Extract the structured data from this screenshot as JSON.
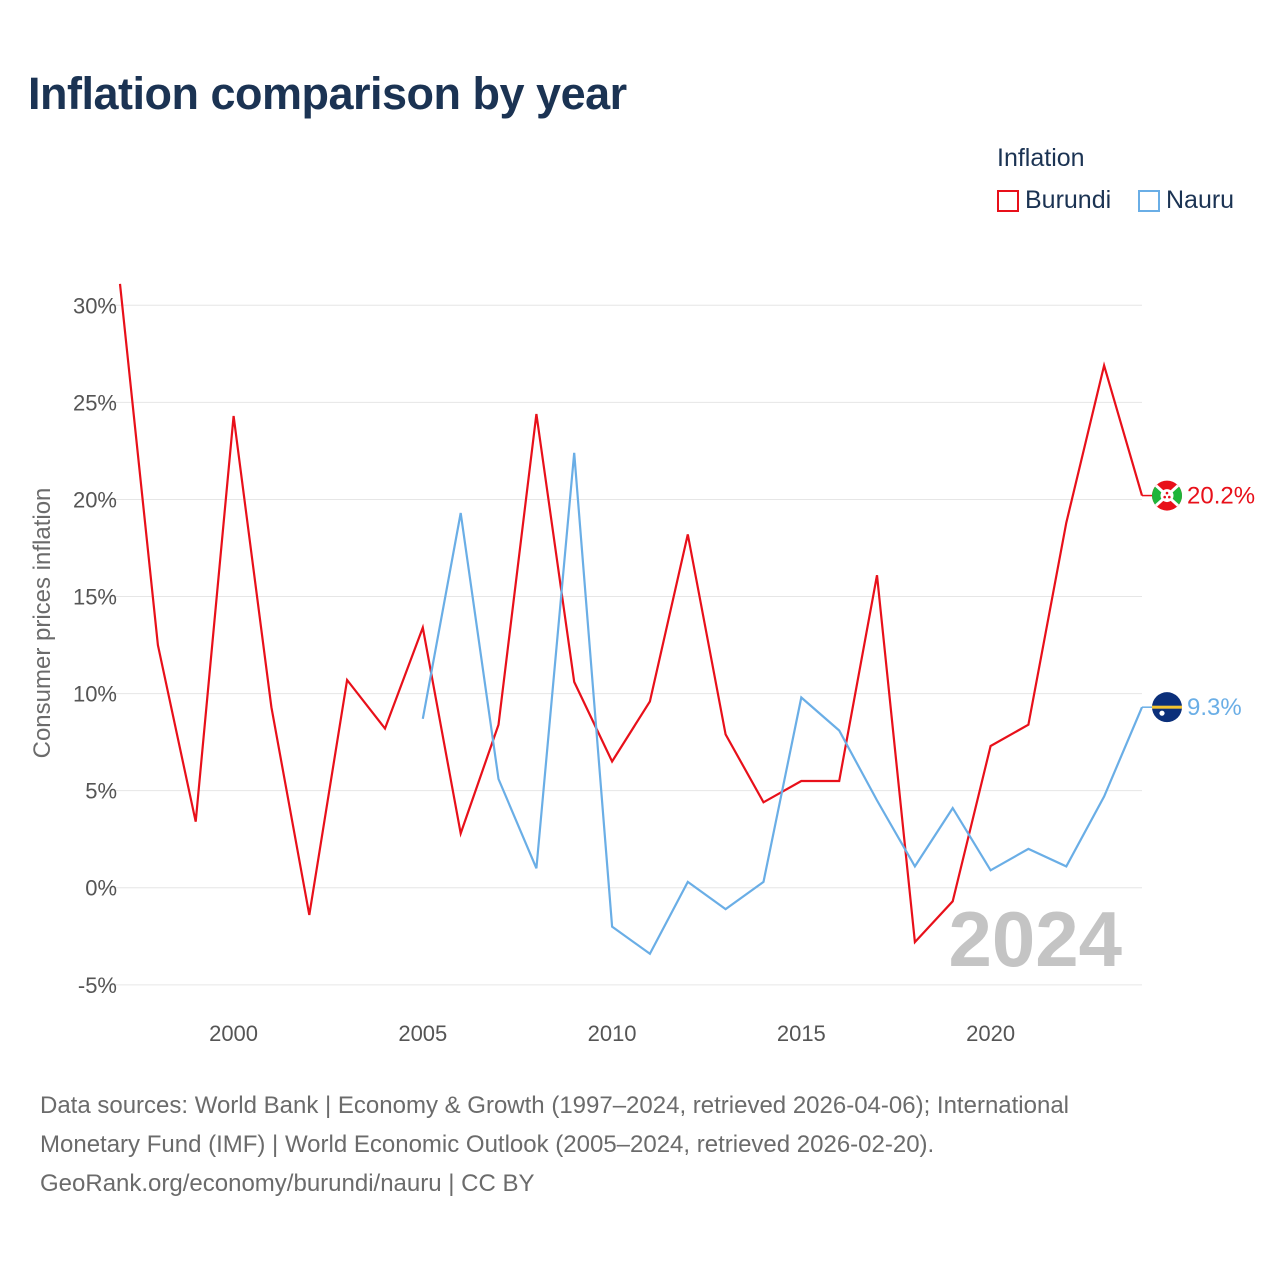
{
  "title": "Inflation comparison by year",
  "legend": {
    "title": "Inflation",
    "items": [
      {
        "label": "Burundi",
        "color": "#e8101a"
      },
      {
        "label": "Nauru",
        "color": "#6aaee6"
      }
    ]
  },
  "chart_data": {
    "type": "line",
    "ylabel": "Consumer prices inflation",
    "xlim": [
      1997,
      2024
    ],
    "ylim": [
      -6.4,
      31.2
    ],
    "x_ticks": [
      2000,
      2005,
      2010,
      2015,
      2020
    ],
    "x_tick_labels": [
      "2000",
      "2005",
      "2010",
      "2015",
      "2020"
    ],
    "y_ticks": [
      -5,
      0,
      5,
      10,
      15,
      20,
      25,
      30
    ],
    "y_tick_labels": [
      "-5%",
      "0%",
      "5%",
      "10%",
      "15%",
      "20%",
      "25%",
      "30%"
    ],
    "year_label": "2024",
    "series": [
      {
        "name": "Burundi",
        "color": "#e8101a",
        "flag": "burundi-flag-icon",
        "end_label": "20.2%",
        "x": [
          1997,
          1998,
          1999,
          2000,
          2001,
          2002,
          2003,
          2004,
          2005,
          2006,
          2007,
          2008,
          2009,
          2010,
          2011,
          2012,
          2013,
          2014,
          2015,
          2016,
          2017,
          2018,
          2019,
          2020,
          2021,
          2022,
          2023,
          2024
        ],
        "values": [
          31.1,
          12.5,
          3.4,
          24.3,
          9.3,
          -1.4,
          10.7,
          8.2,
          13.4,
          2.8,
          8.4,
          24.4,
          10.6,
          6.5,
          9.6,
          18.2,
          7.9,
          4.4,
          5.5,
          5.5,
          16.1,
          -2.8,
          -0.7,
          7.3,
          8.4,
          18.8,
          26.9,
          20.2
        ]
      },
      {
        "name": "Nauru",
        "color": "#6aaee6",
        "flag": "nauru-flag-icon",
        "end_label": "9.3%",
        "x": [
          2005,
          2006,
          2007,
          2008,
          2009,
          2010,
          2011,
          2012,
          2013,
          2014,
          2015,
          2016,
          2017,
          2018,
          2019,
          2020,
          2021,
          2022,
          2023,
          2024
        ],
        "values": [
          8.7,
          19.3,
          5.6,
          1.0,
          22.4,
          -2.0,
          -3.4,
          0.3,
          -1.1,
          0.3,
          9.8,
          8.1,
          4.5,
          1.1,
          4.1,
          0.9,
          2.0,
          1.1,
          4.7,
          9.3
        ]
      }
    ]
  },
  "source": {
    "line1": "Data sources: World Bank | Economy & Growth (1997–2024, retrieved 2026-04-06); International",
    "line2": "Monetary Fund (IMF) | World Economic Outlook (2005–2024, retrieved 2026-02-20).",
    "line3": "GeoRank.org/economy/burundi/nauru | CC BY"
  }
}
